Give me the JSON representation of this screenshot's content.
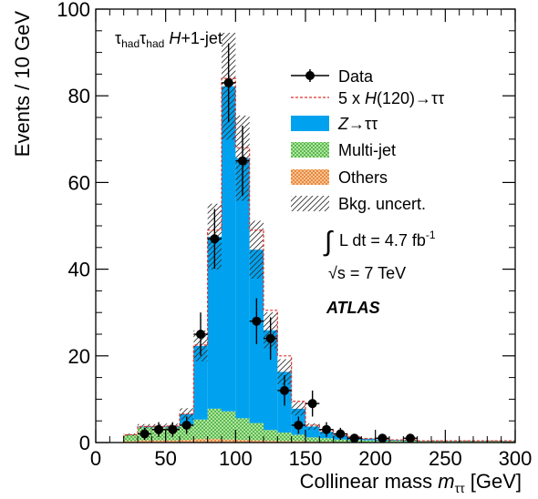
{
  "chart_data": {
    "type": "bar",
    "ylabel": "Events / 10 GeV",
    "xlabel_text": "Collinear mass ",
    "xlabel_var": "m",
    "xlabel_sub": "ττ",
    "xlabel_unit": " [GeV]",
    "xlim": [
      0,
      300
    ],
    "ylim": [
      0,
      100
    ],
    "xticks": [
      0,
      50,
      100,
      150,
      200,
      250,
      300
    ],
    "yticks": [
      0,
      20,
      40,
      60,
      80,
      100
    ],
    "bin_edges": [
      20,
      30,
      40,
      50,
      60,
      70,
      80,
      90,
      100,
      110,
      120,
      130,
      140,
      150,
      160,
      170,
      180,
      190,
      200,
      210,
      220,
      230,
      240,
      250,
      260,
      270,
      280,
      290,
      300
    ],
    "stack": [
      {
        "name": "Others",
        "color": "#f28a2e",
        "values": [
          0.3,
          0.5,
          0.5,
          0.5,
          0.6,
          0.8,
          0.8,
          0.7,
          0.6,
          0.5,
          0.4,
          0.3,
          0.3,
          0.2,
          0.2,
          0.1,
          0.1,
          0.1,
          0.1,
          0.1,
          0.1,
          0.1,
          0.1,
          0.1,
          0.1,
          0.1,
          0.1,
          0.1
        ]
      },
      {
        "name": "Multi-jet",
        "color": "#7ed957",
        "values": [
          1.5,
          3.0,
          3.0,
          3.0,
          3.5,
          4.5,
          7.0,
          6.5,
          5.0,
          4.0,
          2.5,
          2.0,
          1.5,
          1.0,
          0.8,
          0.6,
          0.5,
          0.4,
          0.3,
          0.3,
          0.3,
          0.2,
          0.2,
          0.2,
          0.2,
          0.2,
          0.2,
          0.2
        ]
      },
      {
        "name": "Z→ττ",
        "color": "#00a2ef",
        "values": [
          0.0,
          0.2,
          0.2,
          0.3,
          2.5,
          17.0,
          39.7,
          75.0,
          60.0,
          40.0,
          23.0,
          14.0,
          6.0,
          2.5,
          1.5,
          1.0,
          0.6,
          0.4,
          0.3,
          0.2,
          0.2,
          0.1,
          0.1,
          0.1,
          0.1,
          0.1,
          0.1,
          0.1
        ]
      }
    ],
    "signal": {
      "name": "5 x H(120)→ττ",
      "color": "#e0302a",
      "values": [
        1.8,
        3.7,
        3.7,
        3.8,
        6.6,
        22.5,
        49.0,
        84.0,
        68.0,
        49.0,
        30.5,
        20.0,
        9.5,
        4.0,
        2.8,
        1.9,
        1.3,
        0.9,
        0.7,
        0.6,
        0.6,
        0.4,
        0.4,
        0.4,
        0.4,
        0.4,
        0.4,
        0.4
      ]
    },
    "uncert_rel": [
      0.15,
      0.15,
      0.15,
      0.15,
      0.2,
      0.16,
      0.16,
      0.15,
      0.15,
      0.15,
      0.16,
      0.18,
      0.2,
      0.2,
      0.2,
      0.2,
      0.2,
      0.2,
      0.2,
      0.2,
      0.2,
      0.2,
      0.2,
      0.2,
      0.2,
      0.2,
      0.2,
      0.2
    ],
    "data_points": [
      {
        "x": 35,
        "y": 2,
        "err": 1.4
      },
      {
        "x": 45,
        "y": 3,
        "err": 1.7
      },
      {
        "x": 55,
        "y": 3,
        "err": 1.7
      },
      {
        "x": 65,
        "y": 4,
        "err": 2.0
      },
      {
        "x": 75,
        "y": 25,
        "err": 5.0
      },
      {
        "x": 85,
        "y": 47,
        "err": 6.9
      },
      {
        "x": 95,
        "y": 83,
        "err": 9.1
      },
      {
        "x": 105,
        "y": 65,
        "err": 8.1
      },
      {
        "x": 115,
        "y": 28,
        "err": 5.3
      },
      {
        "x": 125,
        "y": 24,
        "err": 4.9
      },
      {
        "x": 135,
        "y": 12,
        "err": 3.5
      },
      {
        "x": 145,
        "y": 4,
        "err": 2.0
      },
      {
        "x": 155,
        "y": 9,
        "err": 3.0
      },
      {
        "x": 165,
        "y": 3,
        "err": 1.7
      },
      {
        "x": 175,
        "y": 2,
        "err": 1.4
      },
      {
        "x": 185,
        "y": 1,
        "err": 1.0
      },
      {
        "x": 205,
        "y": 1,
        "err": 1.0
      },
      {
        "x": 225,
        "y": 1,
        "err": 1.0
      }
    ],
    "legend": {
      "data": "Data",
      "signal_prefix": "5 x ",
      "signal_h": "H",
      "signal_suffix": "(120)→ττ",
      "z": "Z",
      "z_suffix": "→ττ",
      "multijet": "Multi-jet",
      "others": "Others",
      "uncert": "Bkg. uncert."
    },
    "annotations": {
      "channel_tau1": "τ",
      "channel_had1": "had",
      "channel_tau2": "τ",
      "channel_had2": "had",
      "channel_h": " H",
      "channel_rest": "+1-jet",
      "lumi_integral": "∫",
      "lumi_text": "L dt = 4.7 fb",
      "lumi_sup": "-1",
      "sqrt_sym": "√",
      "sqrt_text": "s = 7 TeV",
      "experiment": "ATLAS"
    }
  }
}
